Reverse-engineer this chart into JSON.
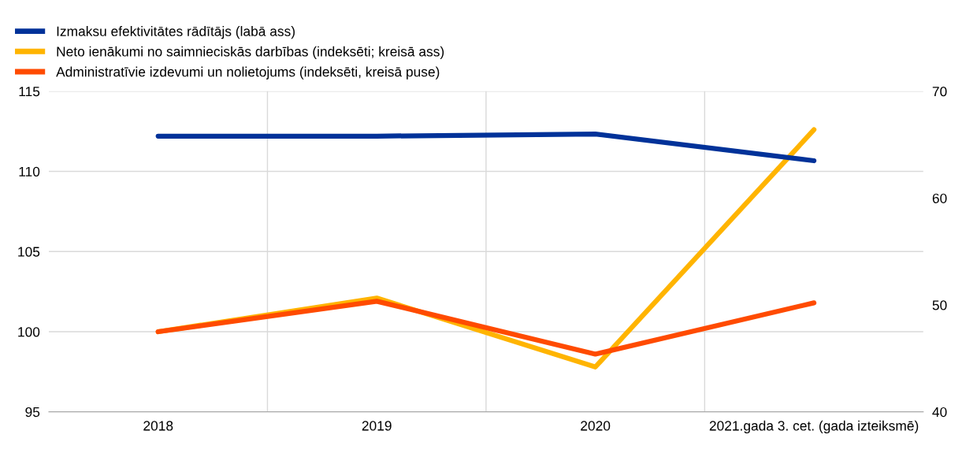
{
  "chart_data": {
    "type": "line",
    "categories": [
      "2018",
      "2019",
      "2020",
      "2021.gada 3. cet. (gada izteiksmē)"
    ],
    "series": [
      {
        "name": "Izmaksu efektivitātes rādītājs (labā ass)",
        "color": "#003299",
        "axis": "y2",
        "values": [
          65.8,
          65.8,
          66.0,
          63.5
        ]
      },
      {
        "name": "Neto ienākumi no saimnieciskās darbības (indeksēti; kreisā ass)",
        "color": "#ffb400",
        "values": [
          100,
          102.1,
          97.8,
          112.6
        ]
      },
      {
        "name": "Administratīvie izdevumi un nolietojums (indeksēti, kreisā puse)",
        "color": "#ff4b00",
        "values": [
          100,
          101.9,
          98.6,
          101.8
        ]
      }
    ],
    "ylim": [
      95,
      115
    ],
    "yticks": [
      95,
      100,
      105,
      110,
      115
    ],
    "y2lim": [
      40,
      70
    ],
    "y2ticks": [
      40,
      50,
      60,
      70
    ],
    "grid": true,
    "legend": "top left",
    "marker": "none",
    "line_style": "solid"
  }
}
